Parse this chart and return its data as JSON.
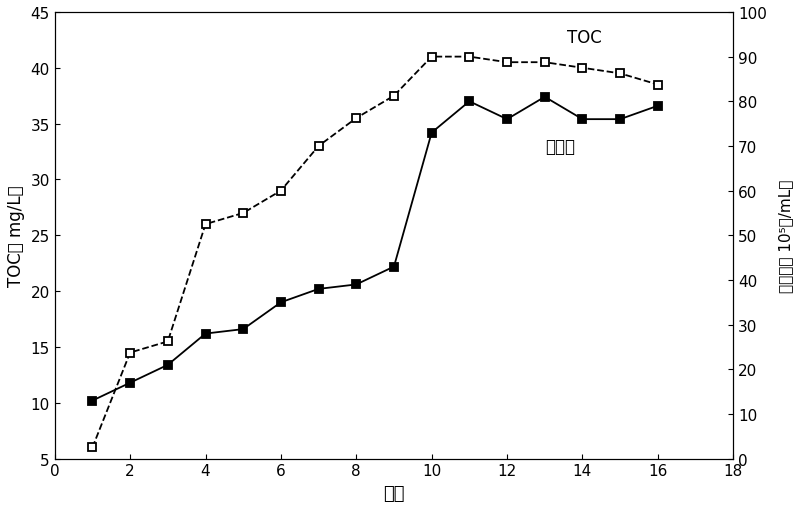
{
  "toc_x": [
    1,
    2,
    3,
    4,
    5,
    6,
    7,
    8,
    9,
    10,
    11,
    12,
    13,
    14,
    15,
    16
  ],
  "toc_y": [
    6.0,
    14.5,
    15.5,
    26.0,
    27.0,
    29.0,
    33.0,
    35.5,
    37.5,
    41.0,
    41.0,
    40.5,
    40.5,
    40.0,
    39.5,
    38.5
  ],
  "bio_x": [
    1,
    2,
    3,
    4,
    5,
    6,
    7,
    8,
    9,
    10,
    11,
    12,
    13,
    14,
    15,
    16
  ],
  "bio_y_right": [
    13,
    17,
    21,
    28,
    29,
    35,
    38,
    39,
    43,
    73,
    80,
    76,
    81,
    76,
    76,
    79
  ],
  "xlabel": "次数",
  "ylabel_left": "TOC（ mg/L）",
  "ylabel_right_chars": [
    "生",
    "物",
    "量",
    "（",
    " ",
    "1",
    "0",
    "⁵",
    "个",
    "/",
    "m",
    "L",
    "）"
  ],
  "label_toc": "TOC",
  "label_bio": "生物量",
  "xlim": [
    0,
    18
  ],
  "ylim_left": [
    5,
    45
  ],
  "ylim_right": [
    0,
    100
  ],
  "xticks": [
    0,
    2,
    4,
    6,
    8,
    10,
    12,
    14,
    16,
    18
  ],
  "yticks_left": [
    5,
    10,
    15,
    20,
    25,
    30,
    35,
    40,
    45
  ],
  "yticks_right": [
    0,
    10,
    20,
    30,
    40,
    50,
    60,
    70,
    80,
    90,
    100
  ],
  "line_color": "#000000",
  "bg_color": "#ffffff"
}
